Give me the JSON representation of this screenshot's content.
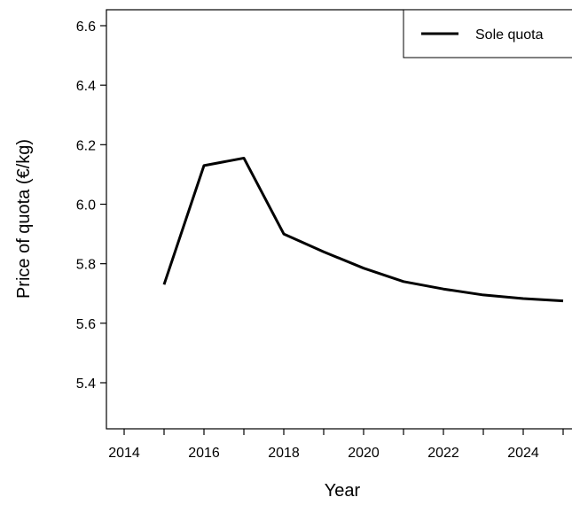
{
  "chart_data": {
    "type": "line",
    "title": "",
    "xlabel": "Year",
    "ylabel": "Price of quota (€/kg)",
    "xlim": [
      2014,
      2025
    ],
    "ylim": [
      5.24,
      6.65
    ],
    "xticks": [
      2014,
      2016,
      2018,
      2020,
      2022,
      2024
    ],
    "xticks_minor": [
      2015,
      2017,
      2019,
      2021,
      2023,
      2025
    ],
    "yticks": [
      5.4,
      5.6,
      5.8,
      6.0,
      6.2,
      6.4,
      6.6
    ],
    "grid": false,
    "legend": {
      "position": "top-right"
    },
    "series": [
      {
        "name": "Sole quota",
        "color": "#000000",
        "x": [
          2015,
          2016,
          2017,
          2018,
          2019,
          2020,
          2021,
          2022,
          2023,
          2024,
          2025
        ],
        "y": [
          5.73,
          6.13,
          6.155,
          5.9,
          5.84,
          5.785,
          5.74,
          5.715,
          5.695,
          5.683,
          5.675
        ]
      }
    ]
  }
}
